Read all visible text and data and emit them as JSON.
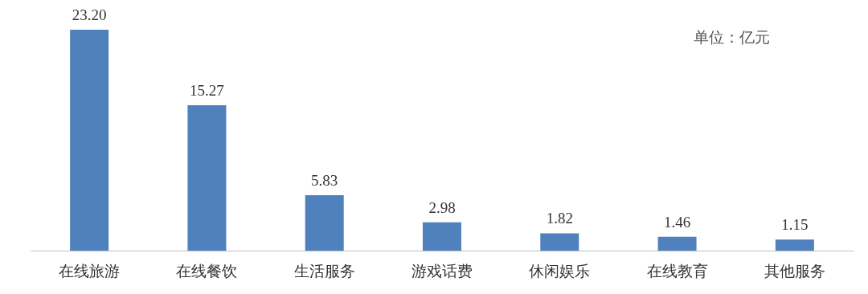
{
  "chart_data": {
    "type": "bar",
    "categories": [
      "在线旅游",
      "在线餐饮",
      "生活服务",
      "游戏话费",
      "休闲娱乐",
      "在线教育",
      "其他服务"
    ],
    "values": [
      23.2,
      15.27,
      5.83,
      2.98,
      1.82,
      1.46,
      1.15
    ],
    "value_labels": [
      "23.20",
      "15.27",
      "5.83",
      "2.98",
      "1.82",
      "1.46",
      "1.15"
    ],
    "color": "#4f81bd",
    "grid": false,
    "tick_labels": "x",
    "annotations": [
      "单位：亿元"
    ]
  }
}
